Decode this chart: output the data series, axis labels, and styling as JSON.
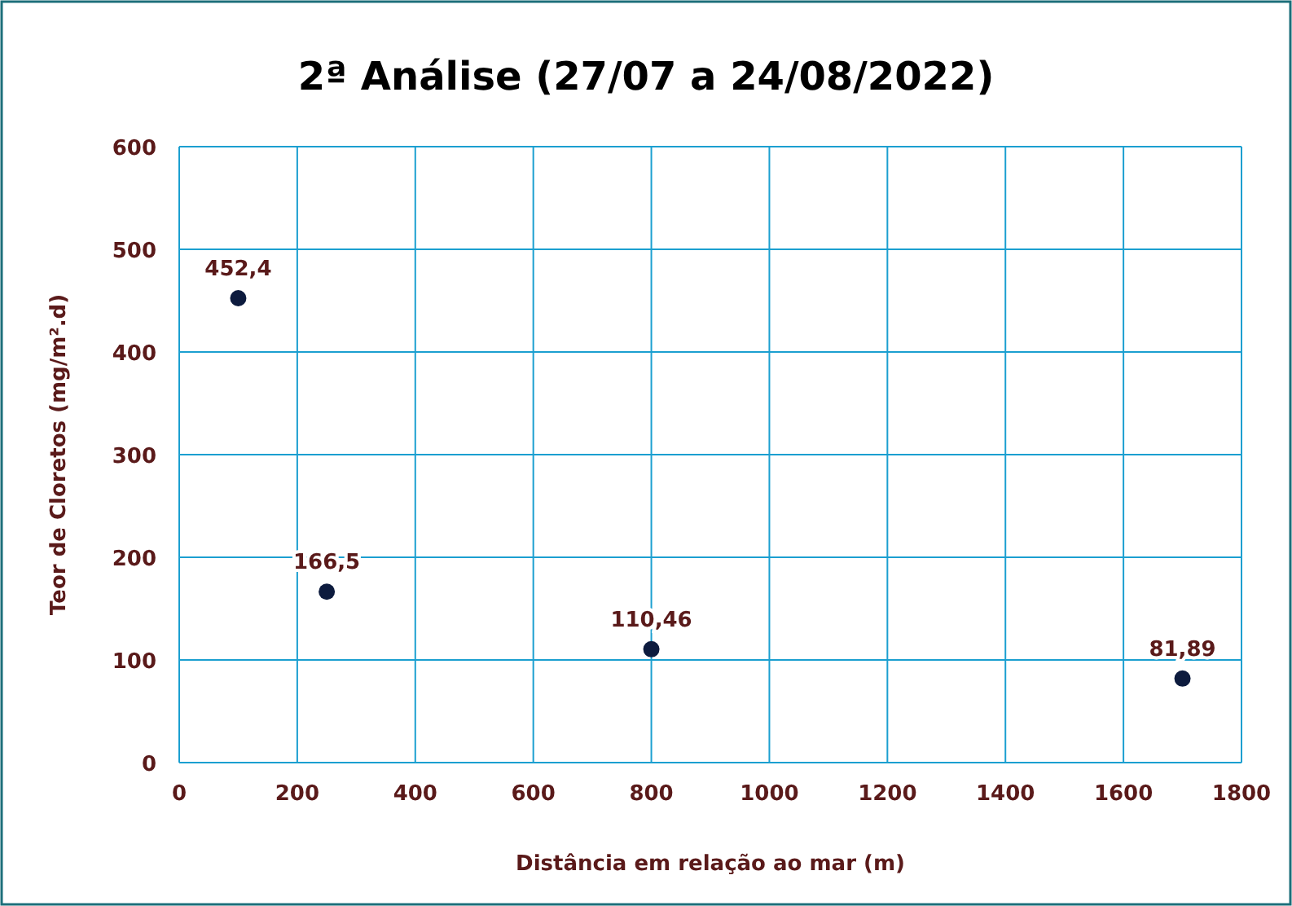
{
  "chart_data": {
    "type": "scatter",
    "title": "2ª Análise (27/07 a 24/08/2022)",
    "xlabel": "Distância  em relação ao mar (m)",
    "ylabel": "Teor de Cloretos (mg/m².d)",
    "x": [
      100,
      250,
      800,
      1700
    ],
    "values": [
      452.4,
      166.5,
      110.46,
      81.89
    ],
    "value_labels": [
      "452,4",
      "166,5",
      "110,46",
      "81,89"
    ],
    "color": "#0d1b3e",
    "marker": "circle",
    "xlim": [
      0,
      1800
    ],
    "xticks": [
      0,
      200,
      400,
      600,
      800,
      1000,
      1200,
      1400,
      1600,
      1800
    ],
    "ylim": [
      0,
      600
    ],
    "yticks": [
      0,
      100,
      200,
      300,
      400,
      500,
      600
    ],
    "grid": true
  }
}
